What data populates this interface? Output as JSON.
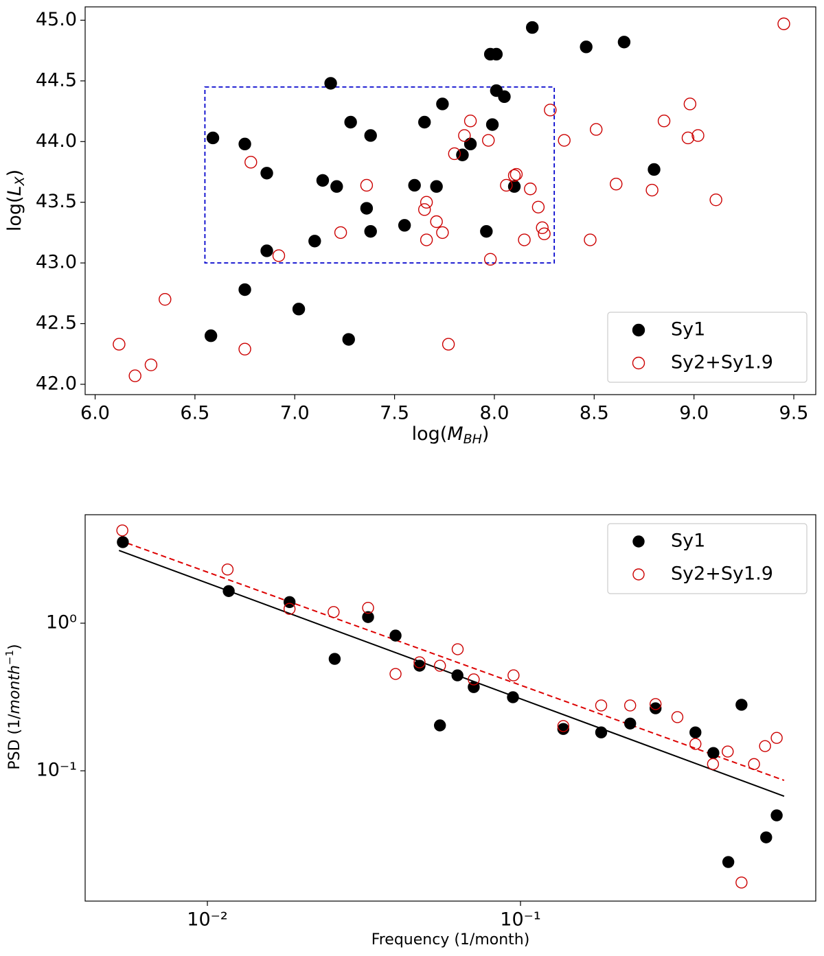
{
  "chart_data": [
    {
      "type": "scatter",
      "xlabel": [
        "log(",
        "M",
        "BH",
        ")"
      ],
      "ylabel": [
        "log(",
        "L",
        "X",
        ")"
      ],
      "xlim": [
        5.95,
        9.61
      ],
      "ylim": [
        41.915,
        45.11
      ],
      "xticks": [
        {
          "value": 6,
          "label": "6.0"
        },
        {
          "value": 6.5,
          "label": "6.5"
        },
        {
          "value": 7,
          "label": "7.0"
        },
        {
          "value": 7.5,
          "label": "7.5"
        },
        {
          "value": 8,
          "label": "8.0"
        },
        {
          "value": 8.5,
          "label": "8.5"
        },
        {
          "value": 9,
          "label": "9.0"
        },
        {
          "value": 9.5,
          "label": "9.5"
        }
      ],
      "yticks": [
        {
          "value": 42,
          "label": "42.0"
        },
        {
          "value": 42.5,
          "label": "42.5"
        },
        {
          "value": 43,
          "label": "43.0"
        },
        {
          "value": 43.5,
          "label": "43.5"
        },
        {
          "value": 44,
          "label": "44.0"
        },
        {
          "value": 44.5,
          "label": "44.5"
        },
        {
          "value": 45,
          "label": "45.0"
        }
      ],
      "legend": "lower right",
      "box": {
        "x": [
          6.55,
          8.3
        ],
        "y": [
          43,
          44.45
        ],
        "color": "#0000cc"
      },
      "series": [
        {
          "name": "Sy1",
          "color": "#000000",
          "marker": "filled",
          "x": [
            8.19,
            7.98,
            8.01,
            8.46,
            8.65,
            7.18,
            8.01,
            8.05,
            7.74,
            7.28,
            7.65,
            7.99,
            7.38,
            6.59,
            6.75,
            7.88,
            7.84,
            6.86,
            7.14,
            7.21,
            7.6,
            7.71,
            8.1,
            8.8,
            7.36,
            7.38,
            7.55,
            7.96,
            7.1,
            6.86,
            6.75,
            7.02,
            6.58,
            7.27
          ],
          "values": [
            44.94,
            44.72,
            44.72,
            44.78,
            44.82,
            44.48,
            44.42,
            44.37,
            44.31,
            44.16,
            44.16,
            44.14,
            44.05,
            44.03,
            43.98,
            43.98,
            43.89,
            43.74,
            43.68,
            43.63,
            43.64,
            43.63,
            43.63,
            43.77,
            43.45,
            43.26,
            43.31,
            43.26,
            43.18,
            43.1,
            42.78,
            42.62,
            42.4,
            42.37
          ]
        },
        {
          "name": "Sy2+Sy1.9",
          "color": "#cc0000",
          "marker": "open",
          "x": [
            9.45,
            8.28,
            8.98,
            7.88,
            8.85,
            8.51,
            7.85,
            8.35,
            7.97,
            8.97,
            9.02,
            7.8,
            6.78,
            8.11,
            8.1,
            7.36,
            8.61,
            8.06,
            8.18,
            8.79,
            9.11,
            7.66,
            7.65,
            8.22,
            7.71,
            8.24,
            8.25,
            7.23,
            7.74,
            7.66,
            8.15,
            8.48,
            6.92,
            7.98,
            6.35,
            6.12,
            6.75,
            7.77,
            6.28,
            6.2
          ],
          "values": [
            44.97,
            44.26,
            44.31,
            44.17,
            44.17,
            44.1,
            44.05,
            44.01,
            44.01,
            44.03,
            44.05,
            43.9,
            43.83,
            43.73,
            43.72,
            43.64,
            43.65,
            43.64,
            43.61,
            43.6,
            43.52,
            43.5,
            43.44,
            43.46,
            43.34,
            43.29,
            43.24,
            43.25,
            43.25,
            43.19,
            43.19,
            43.19,
            43.06,
            43.03,
            42.7,
            42.33,
            42.29,
            42.33,
            42.16,
            42.07
          ]
        }
      ]
    },
    {
      "type": "scatter",
      "xscale": "log",
      "yscale": "log",
      "xlabel": [
        "Frequency (1/month)"
      ],
      "ylabel": [
        "PSD (1/",
        "month",
        "−1",
        ")"
      ],
      "xlim": [
        0.00407,
        0.877
      ],
      "ylim": [
        0.0131,
        5.43
      ],
      "xticks": [
        {
          "value": 0.01,
          "label": "10⁻²"
        },
        {
          "value": 0.1,
          "label": "10⁻¹"
        }
      ],
      "yticks": [
        {
          "value": 0.1,
          "label": "10⁻¹"
        },
        {
          "value": 1,
          "label": "10⁰"
        }
      ],
      "legend": "upper right",
      "series": [
        {
          "name": "Sy1",
          "color": "#000000",
          "marker": "filled",
          "x": [
            0.00537,
            0.0117,
            0.0183,
            0.0255,
            0.0326,
            0.0399,
            0.0476,
            0.0629,
            0.0553,
            0.0709,
            0.0946,
            0.137,
            0.181,
            0.224,
            0.27,
            0.362,
            0.413,
            0.508,
            0.461,
            0.609,
            0.658
          ],
          "values": [
            3.54,
            1.65,
            1.39,
            0.573,
            1.1,
            0.824,
            0.515,
            0.443,
            0.203,
            0.369,
            0.315,
            0.192,
            0.182,
            0.209,
            0.265,
            0.182,
            0.132,
            0.28,
            0.0241,
            0.0354,
            0.0499
          ]
        },
        {
          "name": "Sy2+Sy1.9",
          "color": "#cc0000",
          "marker": "open",
          "x": [
            0.00535,
            0.0116,
            0.0183,
            0.0253,
            0.0326,
            0.0399,
            0.0476,
            0.0553,
            0.063,
            0.0709,
            0.095,
            0.137,
            0.181,
            0.224,
            0.27,
            0.317,
            0.362,
            0.412,
            0.459,
            0.557,
            0.604,
            0.658,
            0.508
          ],
          "values": [
            4.25,
            2.31,
            1.25,
            1.19,
            1.27,
            0.453,
            0.543,
            0.515,
            0.666,
            0.416,
            0.443,
            0.201,
            0.277,
            0.277,
            0.283,
            0.231,
            0.152,
            0.111,
            0.135,
            0.111,
            0.147,
            0.167,
            0.0175
          ]
        }
      ],
      "lines": [
        {
          "color": "#000000",
          "dash": false,
          "x": [
            0.00522,
            0.695
          ],
          "values": [
            3.11,
            0.0673
          ]
        },
        {
          "color": "#dd0000",
          "dash": true,
          "x": [
            0.00522,
            0.695
          ],
          "values": [
            3.65,
            0.0861
          ]
        }
      ]
    }
  ]
}
